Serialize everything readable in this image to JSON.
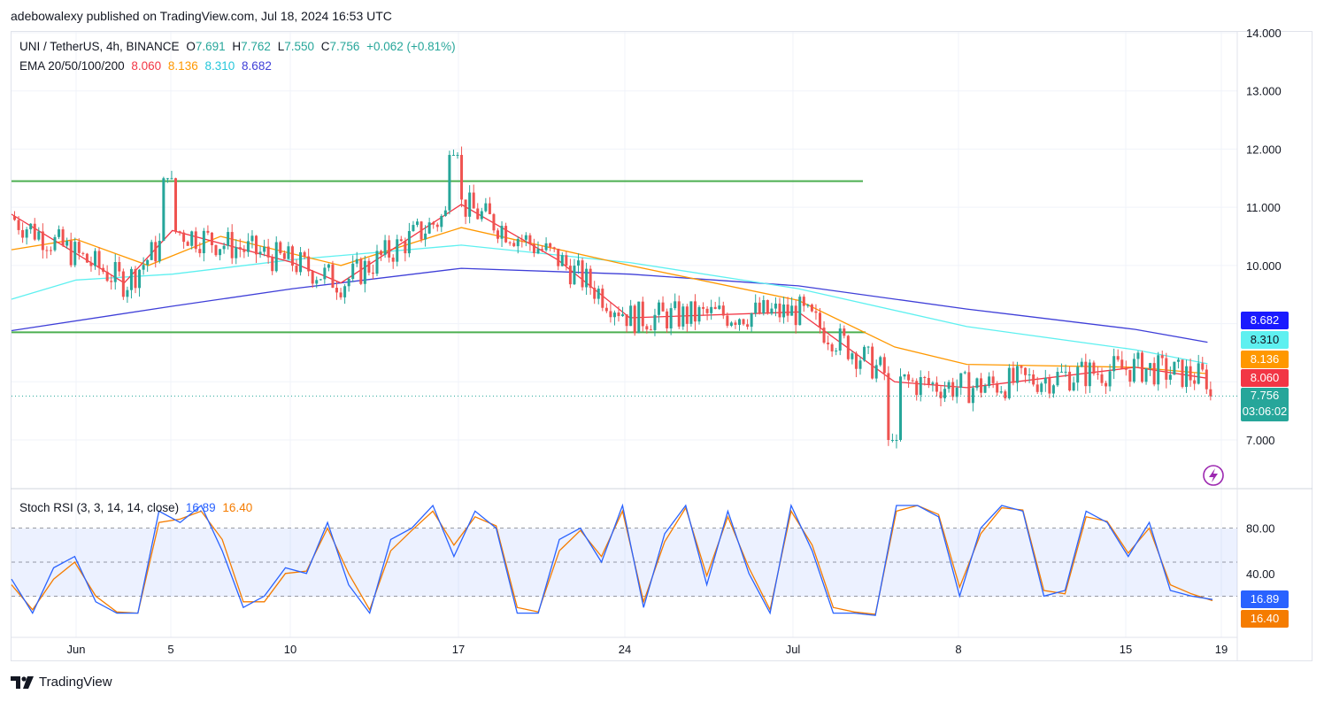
{
  "header": {
    "publisher": "adebowalexy published on TradingView.com, Jul 18, 2024 16:53 UTC"
  },
  "legend": {
    "symbol": "UNI / TetherUS, 4h, BINANCE",
    "o_label": "O",
    "o_val": "7.691",
    "h_label": "H",
    "h_val": "7.762",
    "l_label": "L",
    "l_val": "7.550",
    "c_label": "C",
    "c_val": "7.756",
    "change": "+0.062 (+0.81%)",
    "ema_label": "EMA 20/50/100/200",
    "ema20": "8.060",
    "ema50": "8.136",
    "ema100": "8.310",
    "ema200": "8.682"
  },
  "rsi_legend": {
    "label": "Stoch RSI (3, 3, 14, 14, close)",
    "k": "16.89",
    "d": "16.40"
  },
  "price_tags": {
    "ema200": "8.682",
    "ema100": "8.310",
    "ema50": "8.136",
    "ema20": "8.060",
    "last": "7.756",
    "countdown": "03:06:02"
  },
  "footer": {
    "brand": "TradingView"
  },
  "colors": {
    "up": "#26a69a",
    "down": "#ef5350",
    "ema20": "#f23645",
    "ema50": "#ff9800",
    "ema100": "#5ef0f0",
    "ema200": "#3f3fd8",
    "stoch_k": "#2962ff",
    "stoch_d": "#f57c00",
    "support_resistance": "#4caf50"
  },
  "chart_data": [
    {
      "type": "candlestick",
      "title": "UNI / TetherUS, 4h, BINANCE",
      "y_ticks": [
        "14.000",
        "13.000",
        "12.000",
        "11.000",
        "10.000",
        "7.000"
      ],
      "ylim": [
        6.3,
        14.0
      ],
      "x_ticks": [
        "Jun",
        "5",
        "10",
        "17",
        "24",
        "Jul",
        "8",
        "15",
        "19"
      ],
      "horizontal_lines": [
        11.45,
        8.85
      ],
      "ema200_path": [
        {
          "x": "May 29",
          "y": 8.88
        },
        {
          "x": "Jun 5",
          "y": 9.3
        },
        {
          "x": "Jun 10",
          "y": 9.6
        },
        {
          "x": "Jun 17",
          "y": 9.95
        },
        {
          "x": "Jun 24",
          "y": 9.85
        },
        {
          "x": "Jul 1",
          "y": 9.65
        },
        {
          "x": "Jul 8",
          "y": 9.25
        },
        {
          "x": "Jul 15",
          "y": 8.9
        },
        {
          "x": "Jul 18",
          "y": 8.68
        }
      ],
      "ema100_path": [
        {
          "x": "May 29",
          "y": 9.42
        },
        {
          "x": "Jun 1",
          "y": 9.75
        },
        {
          "x": "Jun 5",
          "y": 9.85
        },
        {
          "x": "Jun 10",
          "y": 10.1
        },
        {
          "x": "Jun 17",
          "y": 10.35
        },
        {
          "x": "Jun 24",
          "y": 10.05
        },
        {
          "x": "Jul 1",
          "y": 9.6
        },
        {
          "x": "Jul 8",
          "y": 8.95
        },
        {
          "x": "Jul 15",
          "y": 8.55
        },
        {
          "x": "Jul 18",
          "y": 8.31
        }
      ],
      "ema50_path": [
        {
          "x": "May 29",
          "y": 10.27
        },
        {
          "x": "Jun 1",
          "y": 10.45
        },
        {
          "x": "Jun 4",
          "y": 10.0
        },
        {
          "x": "Jun 7",
          "y": 10.5
        },
        {
          "x": "Jun 12",
          "y": 10.0
        },
        {
          "x": "Jun 17",
          "y": 10.65
        },
        {
          "x": "Jun 24",
          "y": 10.0
        },
        {
          "x": "Jul 1",
          "y": 9.4
        },
        {
          "x": "Jul 5",
          "y": 8.6
        },
        {
          "x": "Jul 8",
          "y": 8.3
        },
        {
          "x": "Jul 15",
          "y": 8.25
        },
        {
          "x": "Jul 18",
          "y": 8.14
        }
      ],
      "ema20_path": [
        {
          "x": "May 29",
          "y": 10.88
        },
        {
          "x": "Jun 3",
          "y": 9.7
        },
        {
          "x": "Jun 5",
          "y": 10.6
        },
        {
          "x": "Jun 10",
          "y": 10.05
        },
        {
          "x": "Jun 12",
          "y": 9.7
        },
        {
          "x": "Jun 17",
          "y": 11.05
        },
        {
          "x": "Jun 21",
          "y": 10.1
        },
        {
          "x": "Jun 24",
          "y": 9.1
        },
        {
          "x": "Jul 1",
          "y": 9.2
        },
        {
          "x": "Jul 5",
          "y": 8.0
        },
        {
          "x": "Jul 8",
          "y": 7.9
        },
        {
          "x": "Jul 15",
          "y": 8.25
        },
        {
          "x": "Jul 18",
          "y": 8.06
        }
      ],
      "last_price": 7.756
    },
    {
      "type": "line",
      "title": "Stoch RSI (3, 3, 14, 14, close)",
      "y_ticks": [
        "80.00",
        "40.00"
      ],
      "ylim": [
        0,
        100
      ],
      "bands": [
        80,
        50,
        20
      ],
      "series": [
        {
          "name": "K",
          "values": [
            35,
            5,
            45,
            55,
            15,
            5,
            5,
            95,
            85,
            100,
            60,
            10,
            20,
            45,
            40,
            85,
            30,
            5,
            70,
            80,
            100,
            55,
            95,
            80,
            5,
            5,
            70,
            80,
            50,
            100,
            10,
            75,
            100,
            30,
            95,
            40,
            5,
            100,
            60,
            5,
            5,
            3,
            100,
            100,
            90,
            20,
            80,
            100,
            95,
            20,
            25,
            95,
            85,
            55,
            85,
            25,
            20,
            17
          ]
        },
        {
          "name": "D",
          "values": [
            30,
            8,
            35,
            50,
            20,
            6,
            5,
            85,
            88,
            95,
            70,
            15,
            15,
            40,
            42,
            80,
            40,
            8,
            60,
            78,
            95,
            65,
            90,
            82,
            10,
            6,
            60,
            78,
            55,
            95,
            15,
            68,
            98,
            38,
            90,
            45,
            8,
            95,
            65,
            10,
            6,
            4,
            95,
            100,
            92,
            28,
            75,
            98,
            96,
            25,
            22,
            90,
            86,
            58,
            80,
            30,
            22,
            16
          ]
        }
      ],
      "last_k": 16.89,
      "last_d": 16.4
    }
  ]
}
